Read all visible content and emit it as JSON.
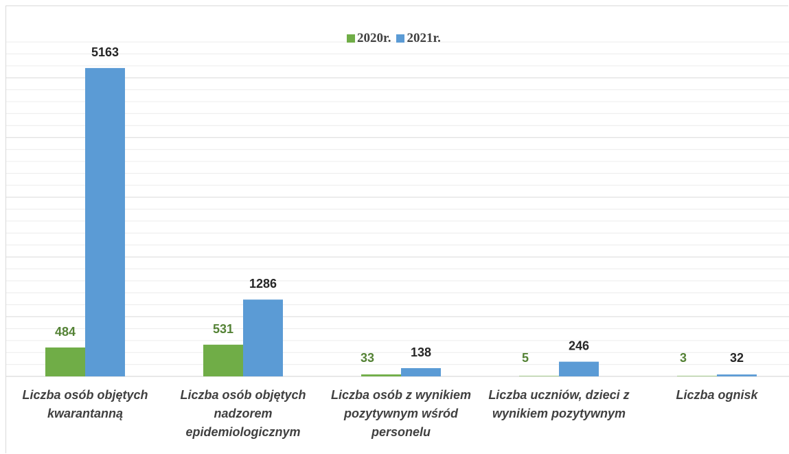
{
  "chart_data": {
    "type": "bar",
    "categories": [
      "Liczba osób objętych kwarantanną",
      "Liczba osób objętych nadzorem epidemiologicznym",
      "Liczba osób z wynikiem pozytywnym wśród personelu",
      "Liczba uczniów, dzieci z wynikiem pozytywnym",
      "Liczba ognisk"
    ],
    "category_lines": [
      "Liczba osób objętych\nkwarantanną",
      "Liczba osób objętych\nnadzorem\nepidemiologicznym",
      "Liczba osób z wynikiem\npozytywnym wśród\npersonelu",
      "Liczba uczniów, dzieci z\nwynikiem pozytywnym",
      "Liczba ognisk"
    ],
    "series": [
      {
        "name": "2020r.",
        "values": [
          484,
          531,
          33,
          5,
          3
        ],
        "color": "#70ad47",
        "label_color": "#548235"
      },
      {
        "name": "2021r.",
        "values": [
          5163,
          1286,
          138,
          246,
          32
        ],
        "color": "#5b9bd5",
        "label_color": "#262626"
      }
    ],
    "ylim": [
      0,
      5600
    ],
    "grid": true,
    "legend_position": "top-center"
  }
}
